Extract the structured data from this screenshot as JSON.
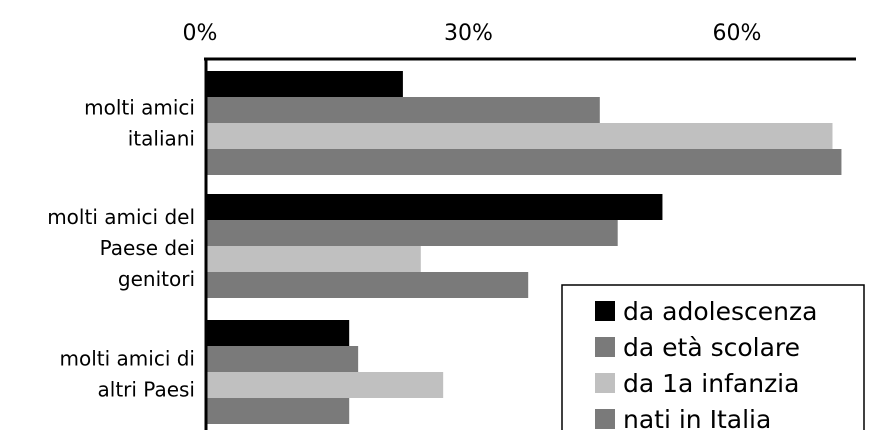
{
  "chart_data": {
    "type": "bar",
    "orientation": "horizontal",
    "categories": [
      [
        "molti amici",
        "italiani"
      ],
      [
        "molti amici del",
        "Paese dei",
        "genitori"
      ],
      [
        "molti amici di",
        "altri Paesi"
      ]
    ],
    "series": [
      {
        "name": "da adolescenza",
        "color": "#000000",
        "values": [
          22,
          51,
          16
        ]
      },
      {
        "name": "da età scolare",
        "color": "#7a7a7a",
        "values": [
          44,
          46,
          17
        ]
      },
      {
        "name": "da 1a infanzia",
        "color": "#c0c0c0",
        "values": [
          70,
          24,
          26.5
        ]
      },
      {
        "name": "nati in Italia",
        "color": "#7a7a7a",
        "values": [
          71,
          36,
          16
        ]
      }
    ],
    "x_ticks": [
      "0%",
      "30%",
      "60%"
    ],
    "tick_values": [
      0,
      30,
      60
    ],
    "xlim": [
      0,
      75
    ],
    "axis_position": "top",
    "grid": false,
    "legend_position": "bottom-right",
    "title": "",
    "xlabel": "",
    "ylabel": ""
  }
}
